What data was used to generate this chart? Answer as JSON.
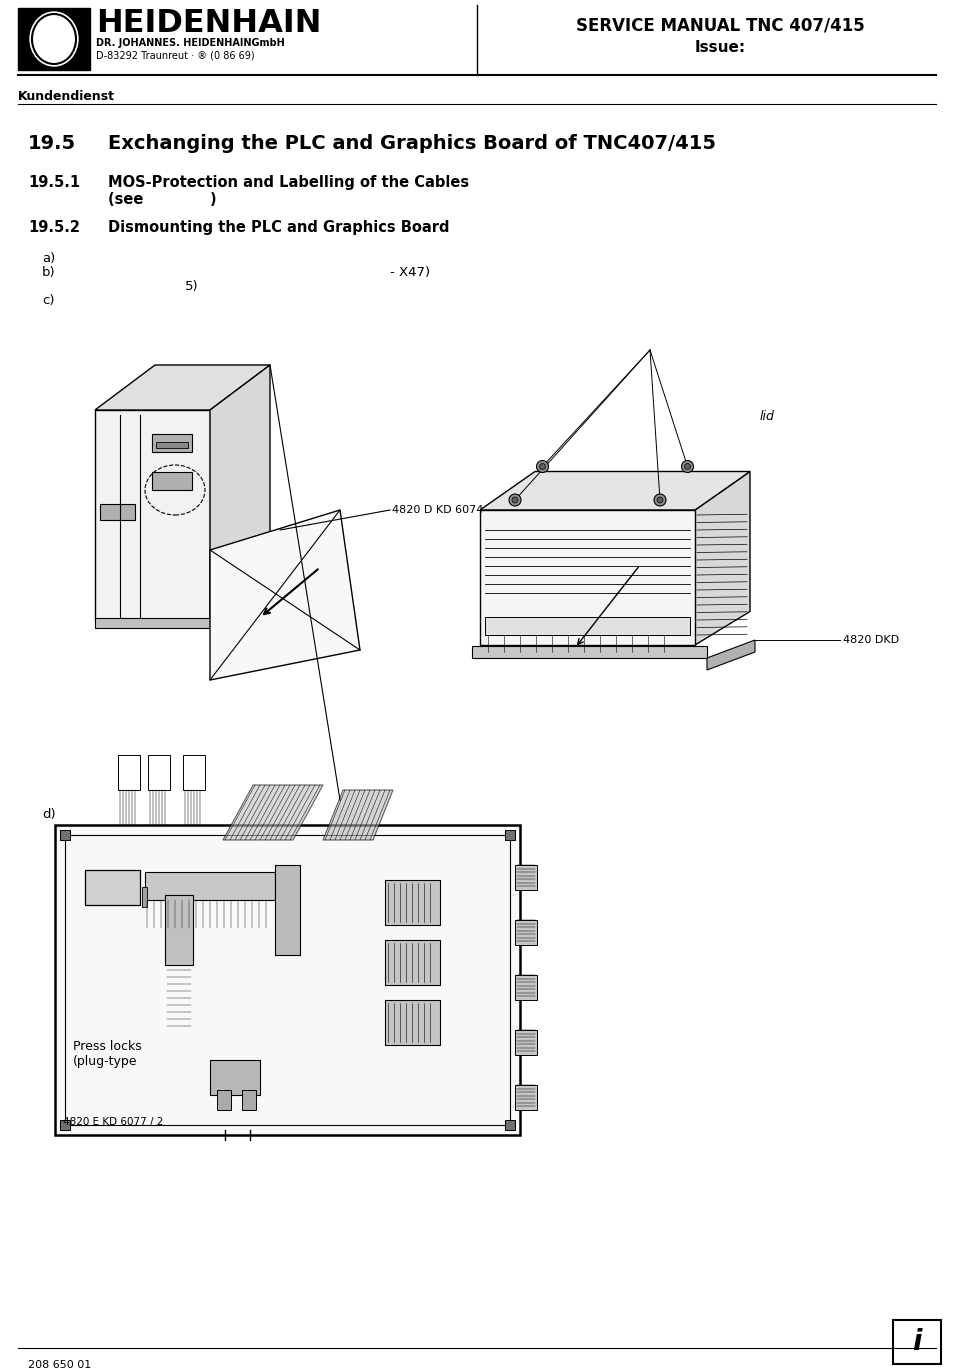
{
  "page_bg": "#ffffff",
  "company_name": "HEIDENHAIN",
  "company_sub": "DR. JOHANNES. HEIDENHAINGmbH",
  "company_addr": "D-83292 Traunreut · ® (0 86 69)",
  "header_right1": "SERVICE MANUAL TNC 407/415",
  "header_right2": "Issue:",
  "section_label": "Kundendienst",
  "title_num": "19.5",
  "title_text": "Exchanging the PLC and Graphics Board of TNC407/415",
  "sub1_num": "19.5.1",
  "sub1_text": "MOS-Protection and Labelling of the Cables",
  "sub1_see": "(see             )",
  "sub2_num": "19.5.2",
  "sub2_text": "Dismounting the PLC and Graphics Board",
  "item_a": "a)",
  "item_b": "b)",
  "item_b_ref": "- X47)",
  "item_b2": "5)",
  "item_c": "c)",
  "item_d": "d)",
  "label_4820dkd6074": "4820 D KD 6074",
  "label_lid": "lid",
  "label_4820dkd": "4820 DKD",
  "label_press_locks": "Press locks\n(plug-type",
  "label_4820ekd6077": "4820 E KD 6077 / 2",
  "footer_text": "208 650 01",
  "text_color": "#000000",
  "bg_color": "#ffffff"
}
